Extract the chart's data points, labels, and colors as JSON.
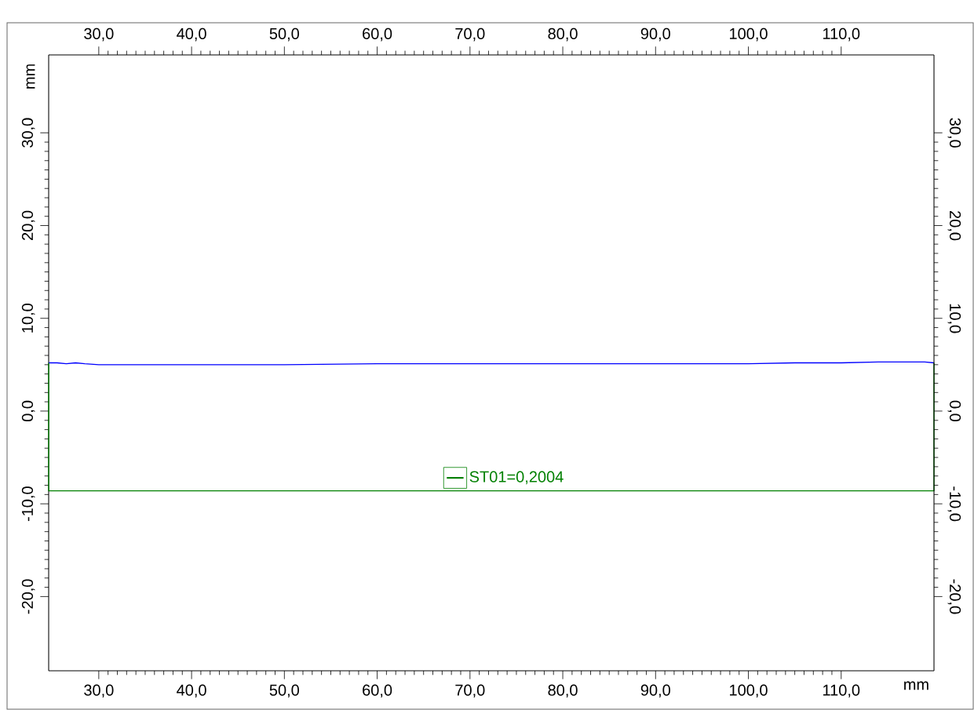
{
  "chart_data": {
    "type": "line",
    "xlabel": "mm",
    "ylabel": "mm",
    "xlim": [
      24.6,
      120.0
    ],
    "ylim": [
      -28.0,
      38.4
    ],
    "x2lim": [
      24.6,
      120.0
    ],
    "y2lim": [
      -28.0,
      38.4
    ],
    "xticks": [
      {
        "value": 30,
        "label": "30,0"
      },
      {
        "value": 40,
        "label": "40,0"
      },
      {
        "value": 50,
        "label": "50,0"
      },
      {
        "value": 60,
        "label": "60,0"
      },
      {
        "value": 70,
        "label": "70,0"
      },
      {
        "value": 80,
        "label": "80,0"
      },
      {
        "value": 90,
        "label": "90,0"
      },
      {
        "value": 100,
        "label": "100,0"
      },
      {
        "value": 110,
        "label": "110,0"
      }
    ],
    "x2ticks": [
      {
        "value": 30,
        "label": "30,0"
      },
      {
        "value": 40,
        "label": "40,0"
      },
      {
        "value": 50,
        "label": "50,0"
      },
      {
        "value": 60,
        "label": "60,0"
      },
      {
        "value": 70,
        "label": "70,0"
      },
      {
        "value": 80,
        "label": "80,0"
      },
      {
        "value": 90,
        "label": "90,0"
      },
      {
        "value": 100,
        "label": "100,0"
      },
      {
        "value": 110,
        "label": "110,0"
      }
    ],
    "yticks": [
      {
        "value": -20,
        "label": "-20,0"
      },
      {
        "value": -10,
        "label": "-10,0"
      },
      {
        "value": 0,
        "label": "0,0"
      },
      {
        "value": 10,
        "label": "10,0"
      },
      {
        "value": 20,
        "label": "20,0"
      },
      {
        "value": 30,
        "label": "30,0"
      }
    ],
    "y2ticks": [
      {
        "value": -20,
        "label": "-20,0"
      },
      {
        "value": -10,
        "label": "-10,0"
      },
      {
        "value": 0,
        "label": "0,0"
      },
      {
        "value": 10,
        "label": "10,0"
      },
      {
        "value": 20,
        "label": "20,0"
      },
      {
        "value": 30,
        "label": "30,0"
      }
    ],
    "legend": "center",
    "series": [
      {
        "color": "#0000ff",
        "x": [
          24.6,
          25.5,
          26.5,
          27.5,
          28.5,
          30,
          35,
          40,
          50,
          60,
          70,
          80,
          90,
          100,
          105,
          110,
          114,
          117,
          119,
          120.0
        ],
        "values": [
          5.2,
          5.2,
          5.1,
          5.2,
          5.1,
          5.0,
          5.0,
          5.0,
          5.0,
          5.1,
          5.1,
          5.1,
          5.1,
          5.1,
          5.2,
          5.2,
          5.3,
          5.3,
          5.3,
          5.2
        ]
      },
      {
        "name": "ST01=0,2004",
        "color": "#008000",
        "x": [
          24.6,
          24.6,
          120.0,
          120.0
        ],
        "values": [
          5.2,
          -8.6,
          -8.6,
          5.2
        ]
      }
    ]
  }
}
